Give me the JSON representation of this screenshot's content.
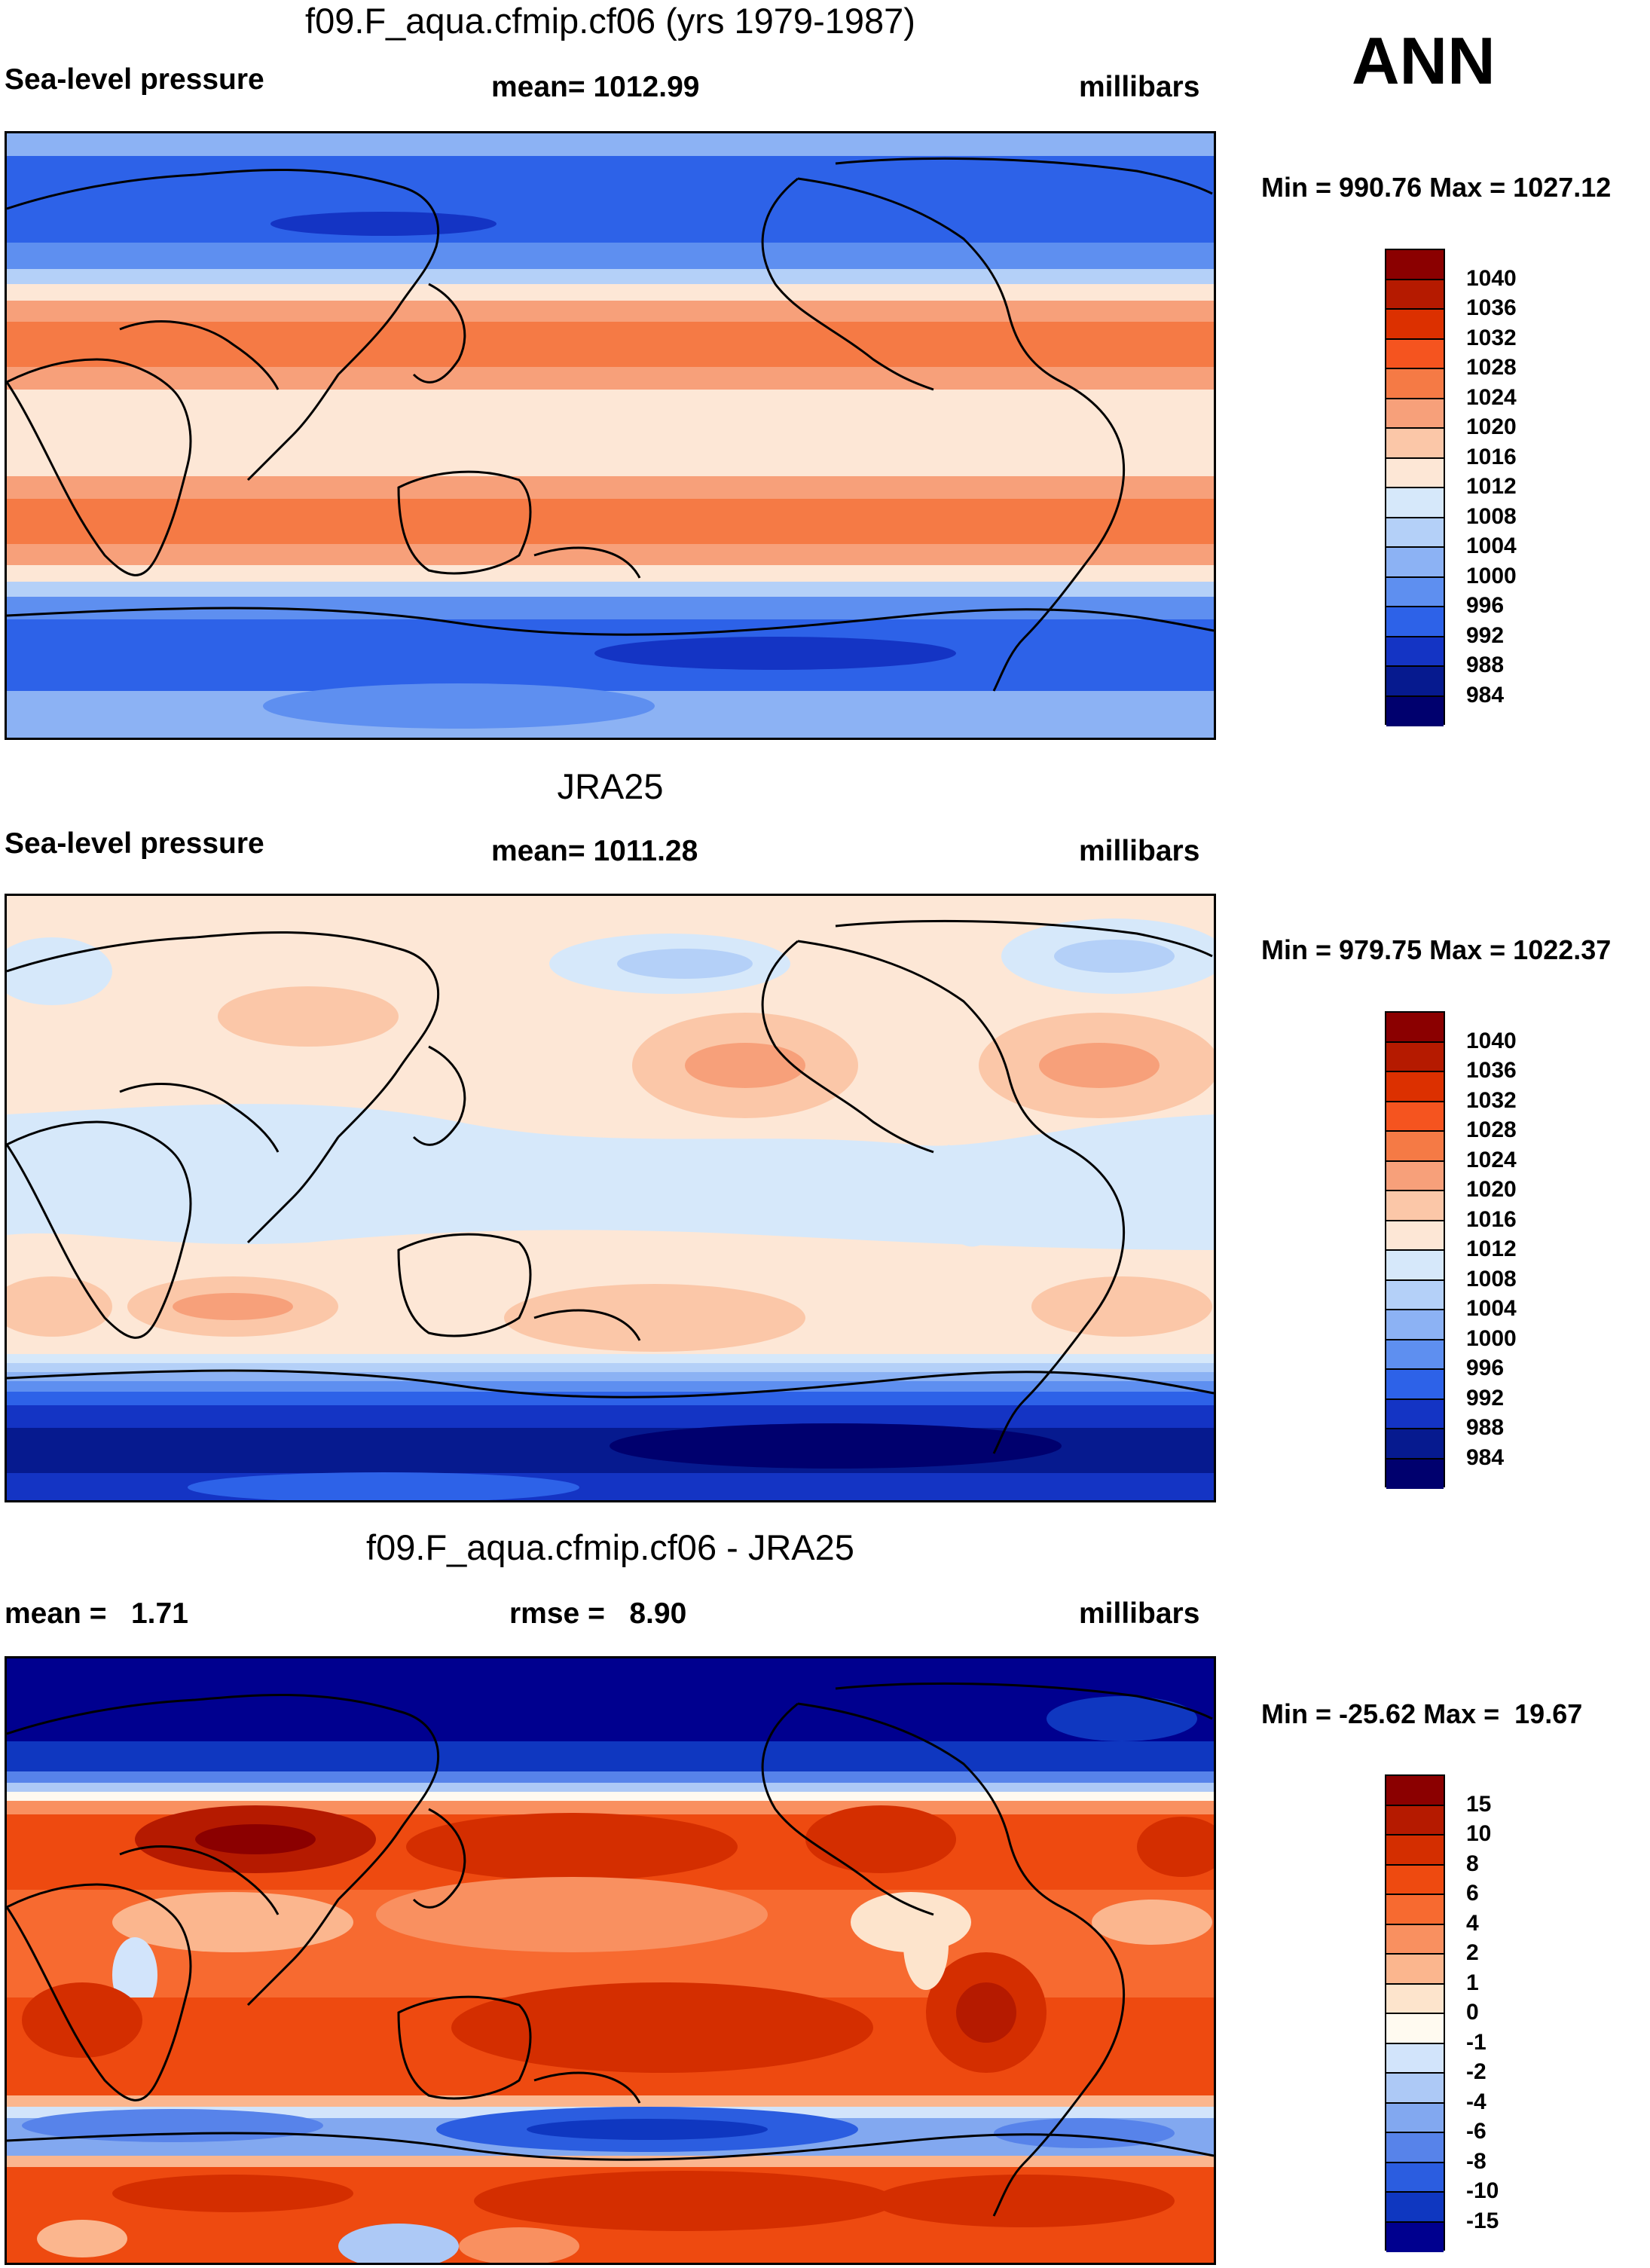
{
  "season": "ANN",
  "panels": [
    {
      "title": "f09.F_aqua.cfmip.cf06 (yrs 1979-1987)",
      "left_label": "Sea-level pressure",
      "center_label": "mean= 1012.99",
      "right_label": "millibars",
      "minmax": "Min = 990.76 Max = 1027.12"
    },
    {
      "title": "JRA25",
      "left_label": "Sea-level pressure",
      "center_label": "mean= 1011.28",
      "right_label": "millibars",
      "minmax": "Min = 979.75 Max = 1022.37"
    },
    {
      "title": "f09.F_aqua.cfmip.cf06 - JRA25",
      "left_label": "mean =   1.71",
      "center_label": "rmse =   8.90",
      "right_label": "millibars",
      "minmax": "Min = -25.62 Max =  19.67"
    }
  ],
  "colorbar_abs": {
    "labels": [
      "1040",
      "1036",
      "1032",
      "1028",
      "1024",
      "1020",
      "1016",
      "1012",
      "1008",
      "1004",
      "1000",
      "996",
      "992",
      "988",
      "984"
    ],
    "colors": [
      "#8b0000",
      "#b51a00",
      "#dc3000",
      "#f5541f",
      "#f57a45",
      "#f7a07a",
      "#fbc7a8",
      "#fde7d6",
      "#d6e8fa",
      "#b4d0f8",
      "#8cb2f4",
      "#5e8ff0",
      "#2d62e8",
      "#1434c4",
      "#061a8f",
      "#00006e"
    ]
  },
  "colorbar_diff": {
    "labels": [
      "15",
      "10",
      "8",
      "6",
      "4",
      "2",
      "1",
      "0",
      "-1",
      "-2",
      "-4",
      "-6",
      "-8",
      "-10",
      "-15"
    ],
    "colors": [
      "#8b0000",
      "#b51a00",
      "#d42e00",
      "#ee4a10",
      "#f76a30",
      "#f99060",
      "#fbb68e",
      "#fde4cc",
      "#fffaf0",
      "#d2e4fb",
      "#adc9f6",
      "#82a8f0",
      "#5783ea",
      "#2b5de0",
      "#0f37c0",
      "#00008f"
    ]
  }
}
